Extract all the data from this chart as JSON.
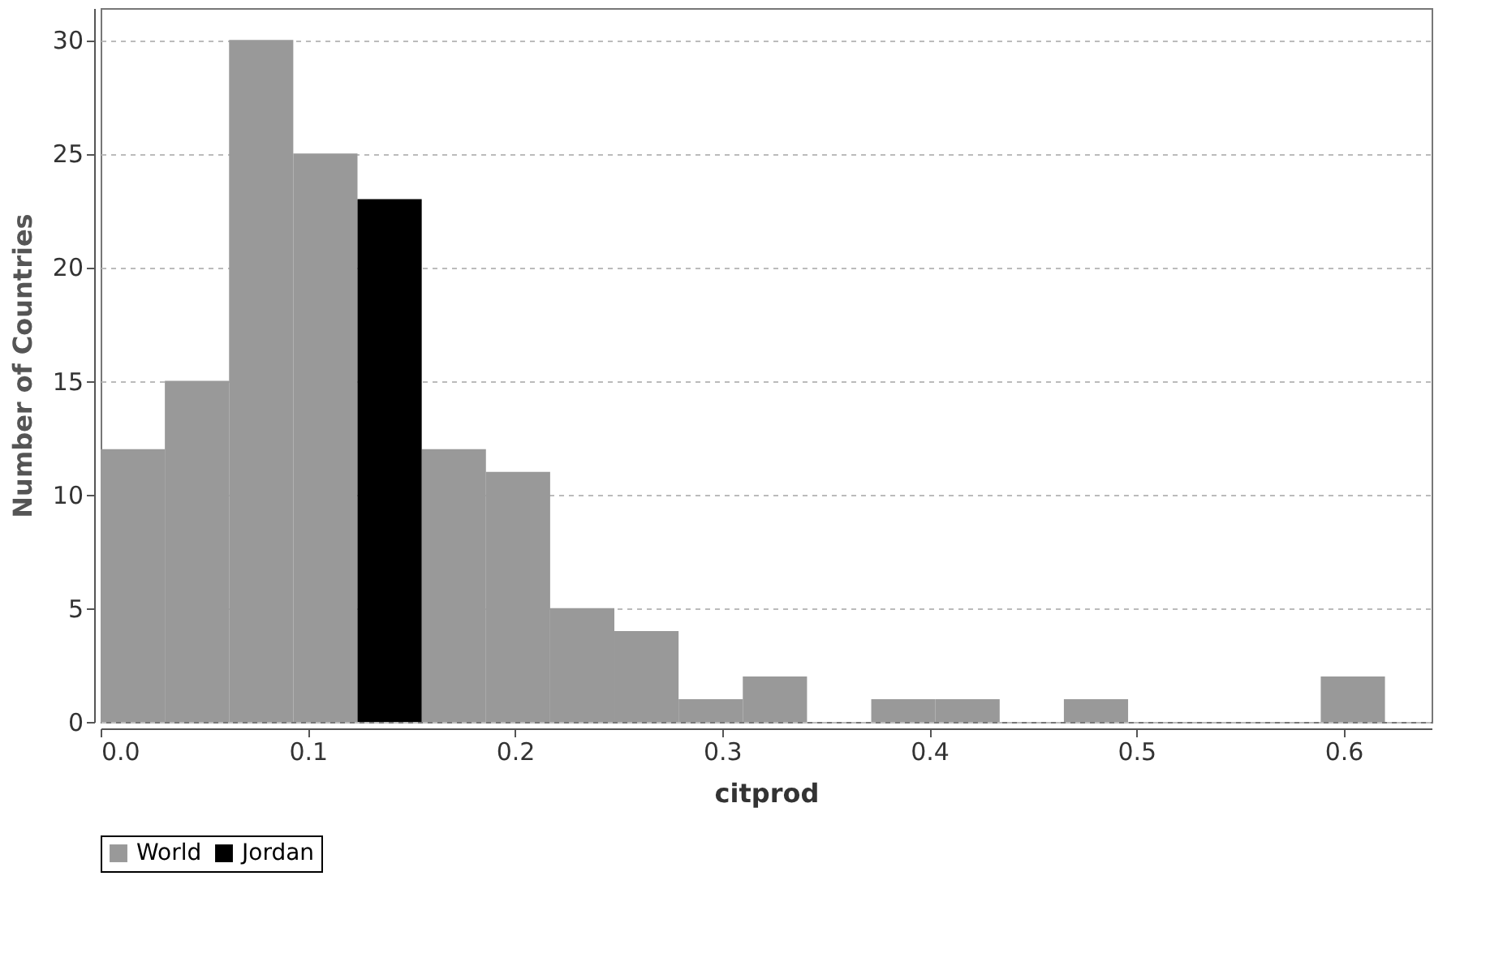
{
  "chart_data": {
    "type": "histogram",
    "xlabel": "citprod",
    "ylabel": "Number of Countries",
    "bins": [
      0,
      0.031,
      0.062,
      0.093,
      0.124,
      0.155,
      0.186,
      0.217,
      0.248,
      0.279,
      0.31,
      0.341,
      0.372,
      0.403,
      0.434,
      0.465,
      0.496,
      0.527,
      0.558,
      0.589,
      0.62
    ],
    "series": [
      {
        "name": "World",
        "color": "#999999",
        "values": [
          12,
          15,
          30,
          25,
          null,
          12,
          11,
          5,
          4,
          1,
          2,
          0,
          1,
          1,
          0,
          1,
          0,
          0,
          0,
          2
        ]
      },
      {
        "name": "Jordan",
        "color": "#000000",
        "values": [
          null,
          null,
          null,
          null,
          23,
          null,
          null,
          null,
          null,
          null,
          null,
          null,
          null,
          null,
          null,
          null,
          null,
          null,
          null,
          null
        ]
      }
    ],
    "xlim": [
      0,
      0.6425
    ],
    "xticks": [
      {
        "value": 0,
        "label": "0.0"
      },
      0.1,
      0.2,
      0.3,
      0.4,
      0.5,
      0.6
    ],
    "ylim": [
      0,
      31.4
    ],
    "yticks": [
      0,
      5,
      10,
      15,
      20,
      25,
      30
    ],
    "grid": "y",
    "legend": "bottom"
  }
}
